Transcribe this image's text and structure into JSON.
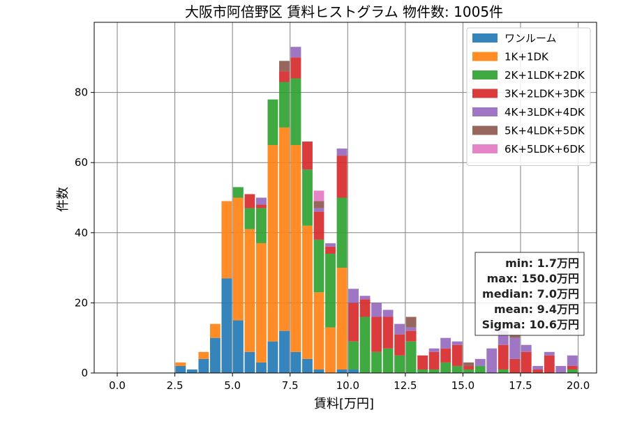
{
  "chart_data": {
    "type": "bar",
    "stacked": true,
    "title": "大阪市阿倍野区 賃料ヒストグラム 物件数: 1005件",
    "xlabel": "賃料[万円]",
    "ylabel": "件数",
    "xlim": [
      -1.0,
      20.8
    ],
    "ylim": [
      0,
      100
    ],
    "xticks": [
      "0.0",
      "2.5",
      "5.0",
      "7.5",
      "10.0",
      "12.5",
      "15.0",
      "17.5",
      "20.0"
    ],
    "yticks": [
      "0",
      "20",
      "40",
      "60",
      "80"
    ],
    "grid": true,
    "legend_position": "top-right",
    "bin_centers": [
      0.25,
      0.75,
      1.25,
      1.75,
      2.25,
      2.75,
      3.25,
      3.75,
      4.25,
      4.75,
      5.25,
      5.75,
      6.25,
      6.75,
      7.25,
      7.75,
      8.25,
      8.75,
      9.25,
      9.75,
      10.25,
      10.75,
      11.25,
      11.75,
      12.25,
      12.75,
      13.25,
      13.75,
      14.25,
      14.75,
      15.25,
      15.75,
      16.25,
      16.75,
      17.25,
      17.75,
      18.25,
      18.75,
      19.25,
      19.75
    ],
    "series": [
      {
        "name": "ワンルーム",
        "color": "#1f77b4",
        "values": [
          0,
          0,
          0,
          0,
          0,
          2,
          1,
          4,
          10,
          27,
          15,
          6,
          3,
          9,
          12,
          6,
          4,
          1,
          0,
          1,
          1,
          0,
          0,
          0,
          0,
          0,
          0,
          0,
          0,
          0,
          0,
          0,
          0,
          0,
          0,
          0,
          0,
          0,
          0,
          0
        ]
      },
      {
        "name": "1K+1DK",
        "color": "#ff7f0e",
        "values": [
          0,
          0,
          0,
          0,
          0,
          1,
          0,
          2,
          4,
          22,
          35,
          35,
          34,
          56,
          58,
          59,
          38,
          22,
          13,
          29,
          0,
          0,
          0,
          0,
          0,
          0,
          0,
          0,
          0,
          0,
          0,
          0,
          0,
          0,
          0,
          0,
          0,
          0,
          0,
          0
        ]
      },
      {
        "name": "2K+1LDK+2DK",
        "color": "#2ca02c",
        "values": [
          0,
          0,
          0,
          0,
          0,
          0,
          0,
          0,
          0,
          0,
          3,
          6,
          10,
          13,
          13,
          19,
          16,
          15,
          21,
          20,
          8,
          16,
          6,
          7,
          5,
          9,
          1,
          1,
          3,
          2,
          1,
          2,
          0,
          1,
          0,
          0,
          0,
          0,
          0,
          1
        ]
      },
      {
        "name": "3K+2LDK+3DK",
        "color": "#d62728",
        "values": [
          0,
          0,
          0,
          0,
          0,
          0,
          0,
          0,
          0,
          0,
          0,
          4,
          1,
          0,
          3,
          6,
          8,
          8,
          2,
          12,
          11,
          5,
          10,
          9,
          6,
          3,
          4,
          5,
          4,
          6,
          1,
          0,
          0,
          7,
          4,
          6,
          1,
          5,
          0,
          1
        ]
      },
      {
        "name": "4K+3LDK+4DK",
        "color": "#9467bd",
        "values": [
          0,
          0,
          0,
          0,
          0,
          0,
          0,
          0,
          0,
          0,
          0,
          0,
          2,
          0,
          0,
          3,
          0,
          1,
          1,
          2,
          4,
          1,
          4,
          2,
          3,
          1,
          0,
          1,
          3,
          1,
          0,
          2,
          7,
          4,
          6,
          2,
          1,
          1,
          2,
          3
        ]
      },
      {
        "name": "5K+4LDK+5DK",
        "color": "#8c564b",
        "values": [
          0,
          0,
          0,
          0,
          0,
          0,
          0,
          0,
          0,
          0,
          0,
          0,
          0,
          0,
          3,
          0,
          0,
          2,
          0,
          0,
          0,
          0,
          0,
          0,
          0,
          3,
          0,
          0,
          0,
          0,
          1,
          0,
          0,
          0,
          1,
          0,
          0,
          0,
          0,
          0
        ]
      },
      {
        "name": "6K+5LDK+6DK",
        "color": "#e377c2",
        "values": [
          0,
          0,
          0,
          0,
          0,
          0,
          0,
          0,
          0,
          0,
          0,
          0,
          0,
          0,
          0,
          0,
          0,
          3,
          0,
          0,
          0,
          0,
          0,
          0,
          0,
          0,
          0,
          0,
          0,
          0,
          0,
          0,
          0,
          0,
          0,
          0,
          0,
          0,
          0,
          0
        ]
      }
    ]
  },
  "stats": {
    "min": "min: 1.7万円",
    "max": "max: 150.0万円",
    "median": "median: 7.0万円",
    "mean": "mean: 9.4万円",
    "sigma": "Sigma: 10.6万円"
  }
}
